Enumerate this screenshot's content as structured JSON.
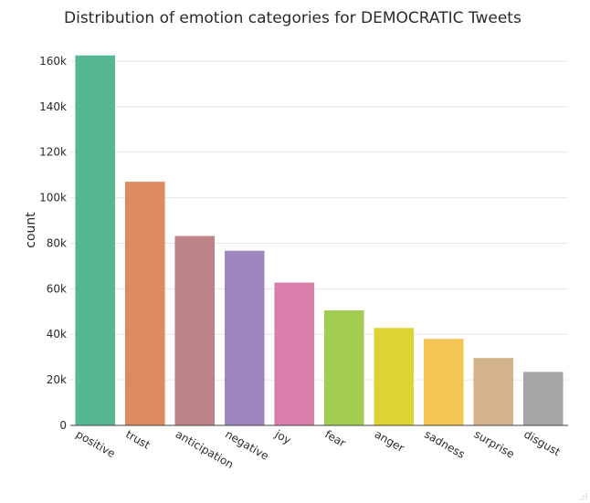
{
  "chart_data": {
    "type": "bar",
    "title": "Distribution of emotion categories for DEMOCRATIC Tweets",
    "xlabel": "",
    "ylabel": "count",
    "categories": [
      "positive",
      "trust",
      "anticipation",
      "negative",
      "joy",
      "fear",
      "anger",
      "sadness",
      "surprise",
      "disgust"
    ],
    "values": [
      162500,
      107000,
      83200,
      76700,
      62700,
      50500,
      42800,
      38000,
      29600,
      23500
    ],
    "colors": [
      "#55b893",
      "#dc8a5e",
      "#bd8488",
      "#a086be",
      "#d97eab",
      "#a3cc53",
      "#dcd432",
      "#f2c554",
      "#d3b48a",
      "#a5a5a5"
    ],
    "ylim": [
      0,
      170000
    ],
    "yticks": [
      0,
      20000,
      40000,
      60000,
      80000,
      100000,
      120000,
      140000,
      160000
    ],
    "ytick_labels": [
      "0",
      "20k",
      "40k",
      "60k",
      "80k",
      "100k",
      "120k",
      "140k",
      "160k"
    ],
    "grid": true,
    "legend": "none"
  }
}
